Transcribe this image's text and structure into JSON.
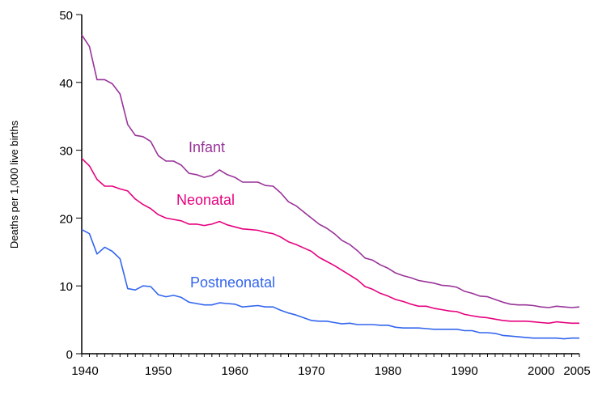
{
  "chart_data": {
    "type": "line",
    "title": "",
    "xlabel": "",
    "ylabel": "Deaths per 1,000 live births",
    "xlim": [
      1940,
      2005
    ],
    "ylim": [
      0,
      50
    ],
    "x_ticks": [
      1940,
      1950,
      1960,
      1970,
      1980,
      1990,
      2000,
      2005
    ],
    "y_ticks": [
      0,
      10,
      20,
      30,
      40,
      50
    ],
    "grid": false,
    "legend": "inline labels",
    "x": [
      1940,
      1941,
      1942,
      1943,
      1944,
      1945,
      1946,
      1947,
      1948,
      1949,
      1950,
      1951,
      1952,
      1953,
      1954,
      1955,
      1956,
      1957,
      1958,
      1959,
      1960,
      1961,
      1962,
      1963,
      1964,
      1965,
      1966,
      1967,
      1968,
      1969,
      1970,
      1971,
      1972,
      1973,
      1974,
      1975,
      1976,
      1977,
      1978,
      1979,
      1980,
      1981,
      1982,
      1983,
      1984,
      1985,
      1986,
      1987,
      1988,
      1989,
      1990,
      1991,
      1992,
      1993,
      1994,
      1995,
      1996,
      1997,
      1998,
      1999,
      2000,
      2001,
      2002,
      2003,
      2004,
      2005
    ],
    "series": [
      {
        "name": "Infant",
        "color": "#993399",
        "values": [
          47.0,
          45.3,
          40.4,
          40.4,
          39.8,
          38.3,
          33.8,
          32.2,
          32.0,
          31.3,
          29.2,
          28.4,
          28.4,
          27.8,
          26.6,
          26.4,
          26.0,
          26.3,
          27.1,
          26.4,
          26.0,
          25.3,
          25.3,
          25.3,
          24.8,
          24.7,
          23.7,
          22.4,
          21.8,
          20.9,
          20.0,
          19.1,
          18.5,
          17.7,
          16.7,
          16.1,
          15.2,
          14.1,
          13.8,
          13.1,
          12.6,
          11.9,
          11.5,
          11.2,
          10.8,
          10.6,
          10.4,
          10.1,
          10.0,
          9.8,
          9.2,
          8.9,
          8.5,
          8.4,
          8.0,
          7.6,
          7.3,
          7.2,
          7.2,
          7.1,
          6.9,
          6.8,
          7.0,
          6.9,
          6.8,
          6.9
        ]
      },
      {
        "name": "Neonatal",
        "color": "#e6007e",
        "values": [
          28.8,
          27.7,
          25.7,
          24.7,
          24.7,
          24.3,
          24.0,
          22.8,
          22.0,
          21.4,
          20.5,
          20.0,
          19.8,
          19.6,
          19.1,
          19.1,
          18.9,
          19.1,
          19.5,
          19.0,
          18.7,
          18.4,
          18.3,
          18.2,
          17.9,
          17.7,
          17.2,
          16.5,
          16.1,
          15.6,
          15.1,
          14.2,
          13.6,
          13.0,
          12.3,
          11.6,
          10.9,
          9.9,
          9.5,
          8.9,
          8.5,
          8.0,
          7.7,
          7.3,
          7.0,
          7.0,
          6.7,
          6.5,
          6.3,
          6.2,
          5.8,
          5.6,
          5.4,
          5.3,
          5.1,
          4.9,
          4.8,
          4.8,
          4.8,
          4.7,
          4.6,
          4.5,
          4.7,
          4.6,
          4.5,
          4.5
        ]
      },
      {
        "name": "Postneonatal",
        "color": "#3366ee",
        "values": [
          18.3,
          17.7,
          14.7,
          15.7,
          15.1,
          14.0,
          9.6,
          9.4,
          10.0,
          9.9,
          8.7,
          8.4,
          8.6,
          8.3,
          7.6,
          7.4,
          7.2,
          7.2,
          7.5,
          7.4,
          7.3,
          6.9,
          7.0,
          7.1,
          6.9,
          6.9,
          6.4,
          6.0,
          5.7,
          5.3,
          4.9,
          4.8,
          4.8,
          4.6,
          4.4,
          4.5,
          4.3,
          4.3,
          4.3,
          4.2,
          4.2,
          3.9,
          3.8,
          3.8,
          3.8,
          3.7,
          3.6,
          3.6,
          3.6,
          3.6,
          3.4,
          3.4,
          3.1,
          3.1,
          3.0,
          2.7,
          2.6,
          2.5,
          2.4,
          2.3,
          2.3,
          2.3,
          2.3,
          2.2,
          2.3,
          2.3
        ]
      }
    ]
  }
}
